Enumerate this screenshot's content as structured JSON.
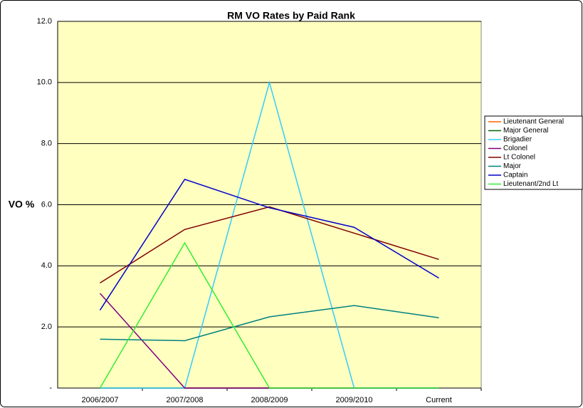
{
  "chart_data": {
    "type": "line",
    "title": "RM VO Rates by Paid Rank",
    "ylabel": "VO %",
    "categories": [
      "2006/2007",
      "2007/2008",
      "2008/2009",
      "2009/2010",
      "Current"
    ],
    "series": [
      {
        "name": "Lieutenant General",
        "color": "#ff6600",
        "values": [
          0,
          0,
          0,
          0,
          0
        ]
      },
      {
        "name": "Major General",
        "color": "#006600",
        "values": [
          0,
          0,
          0,
          0,
          0
        ]
      },
      {
        "name": "Brigadier",
        "color": "#33ccff",
        "values": [
          0,
          0,
          10,
          0,
          0
        ]
      },
      {
        "name": "Colonel",
        "color": "#800080",
        "values": [
          3.1,
          0,
          0,
          0,
          0
        ]
      },
      {
        "name": "Lt Colonel",
        "color": "#800000",
        "values": [
          3.44,
          5.19,
          5.93,
          5.07,
          4.21
        ]
      },
      {
        "name": "Major",
        "color": "#008080",
        "values": [
          1.6,
          1.55,
          2.33,
          2.7,
          2.3
        ]
      },
      {
        "name": "Captain",
        "color": "#0000cc",
        "values": [
          2.55,
          6.83,
          5.9,
          5.26,
          3.6
        ]
      },
      {
        "name": "Lieutenant/2nd Lt",
        "color": "#33ee33",
        "values": [
          0,
          4.75,
          0,
          0,
          0
        ]
      }
    ],
    "ylim": [
      0,
      12
    ],
    "yticks": [
      {
        "value": 0,
        "label": "-"
      },
      {
        "value": 2,
        "label": "2.0"
      },
      {
        "value": 4,
        "label": "4.0"
      },
      {
        "value": 6,
        "label": "6.0"
      },
      {
        "value": 8,
        "label": "8.0"
      },
      {
        "value": 10,
        "label": "10.0"
      },
      {
        "value": 12,
        "label": "12.0"
      }
    ],
    "grid": true,
    "legend": "right"
  }
}
